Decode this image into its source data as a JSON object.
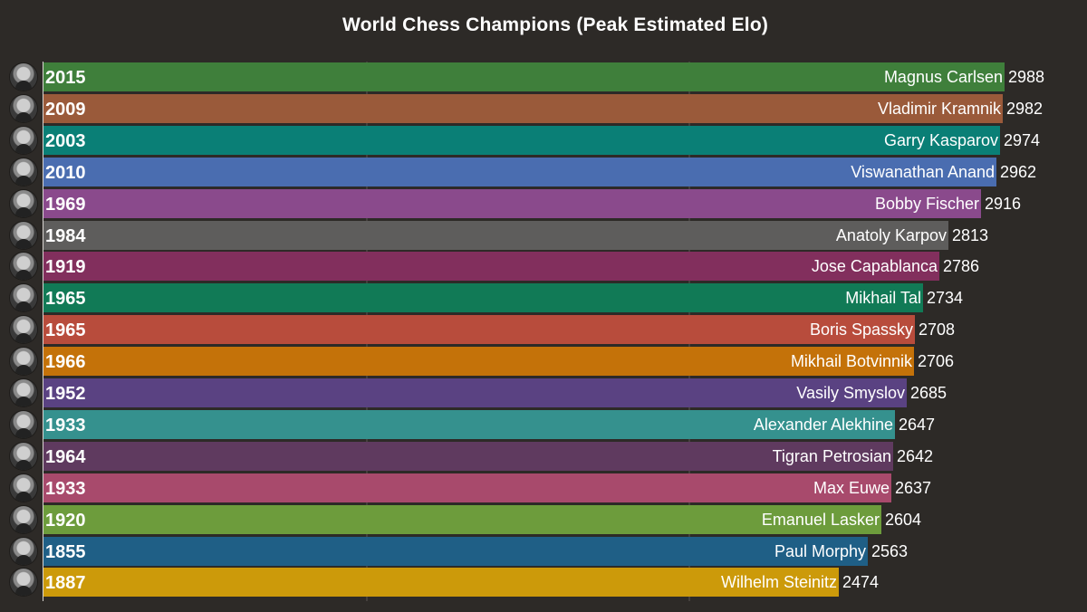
{
  "chart_data": {
    "type": "bar",
    "orientation": "horizontal",
    "title": "World Chess Champions (Peak Estimated Elo)",
    "xlabel": "",
    "ylabel": "",
    "grid": true,
    "rows": [
      {
        "name": "Magnus Carlsen",
        "year": "2015",
        "value": 2988,
        "color": "#3f7f3b"
      },
      {
        "name": "Vladimir Kramnik",
        "year": "2009",
        "value": 2982,
        "color": "#9a5a3a"
      },
      {
        "name": "Garry Kasparov",
        "year": "2003",
        "value": 2974,
        "color": "#0a7f76"
      },
      {
        "name": "Viswanathan Anand",
        "year": "2010",
        "value": 2962,
        "color": "#4a6db0"
      },
      {
        "name": "Bobby Fischer",
        "year": "1969",
        "value": 2916,
        "color": "#8a4a8c"
      },
      {
        "name": "Anatoly Karpov",
        "year": "1984",
        "value": 2813,
        "color": "#5e5d5c"
      },
      {
        "name": "Jose Capablanca",
        "year": "1919",
        "value": 2786,
        "color": "#822f5d"
      },
      {
        "name": "Mikhail Tal",
        "year": "1965",
        "value": 2734,
        "color": "#117a56"
      },
      {
        "name": "Boris Spassky",
        "year": "1965",
        "value": 2708,
        "color": "#b84c3c"
      },
      {
        "name": "Mikhail Botvinnik",
        "year": "1966",
        "value": 2706,
        "color": "#c47209"
      },
      {
        "name": "Vasily Smyslov",
        "year": "1952",
        "value": 2685,
        "color": "#5a4282"
      },
      {
        "name": "Alexander Alekhine",
        "year": "1933",
        "value": 2647,
        "color": "#35918e"
      },
      {
        "name": "Tigran Petrosian",
        "year": "1964",
        "value": 2642,
        "color": "#5f3a5f"
      },
      {
        "name": "Max Euwe",
        "year": "1933",
        "value": 2637,
        "color": "#a84a6c"
      },
      {
        "name": "Emanuel Lasker",
        "year": "1920",
        "value": 2604,
        "color": "#6d9c3c"
      },
      {
        "name": "Paul Morphy",
        "year": "1855",
        "value": 2563,
        "color": "#1f5f86"
      },
      {
        "name": "Wilhelm Steinitz",
        "year": "1887",
        "value": 2474,
        "color": "#cc9a0a"
      }
    ],
    "background": "#2d2a27",
    "grid_color": "#5a5753"
  }
}
